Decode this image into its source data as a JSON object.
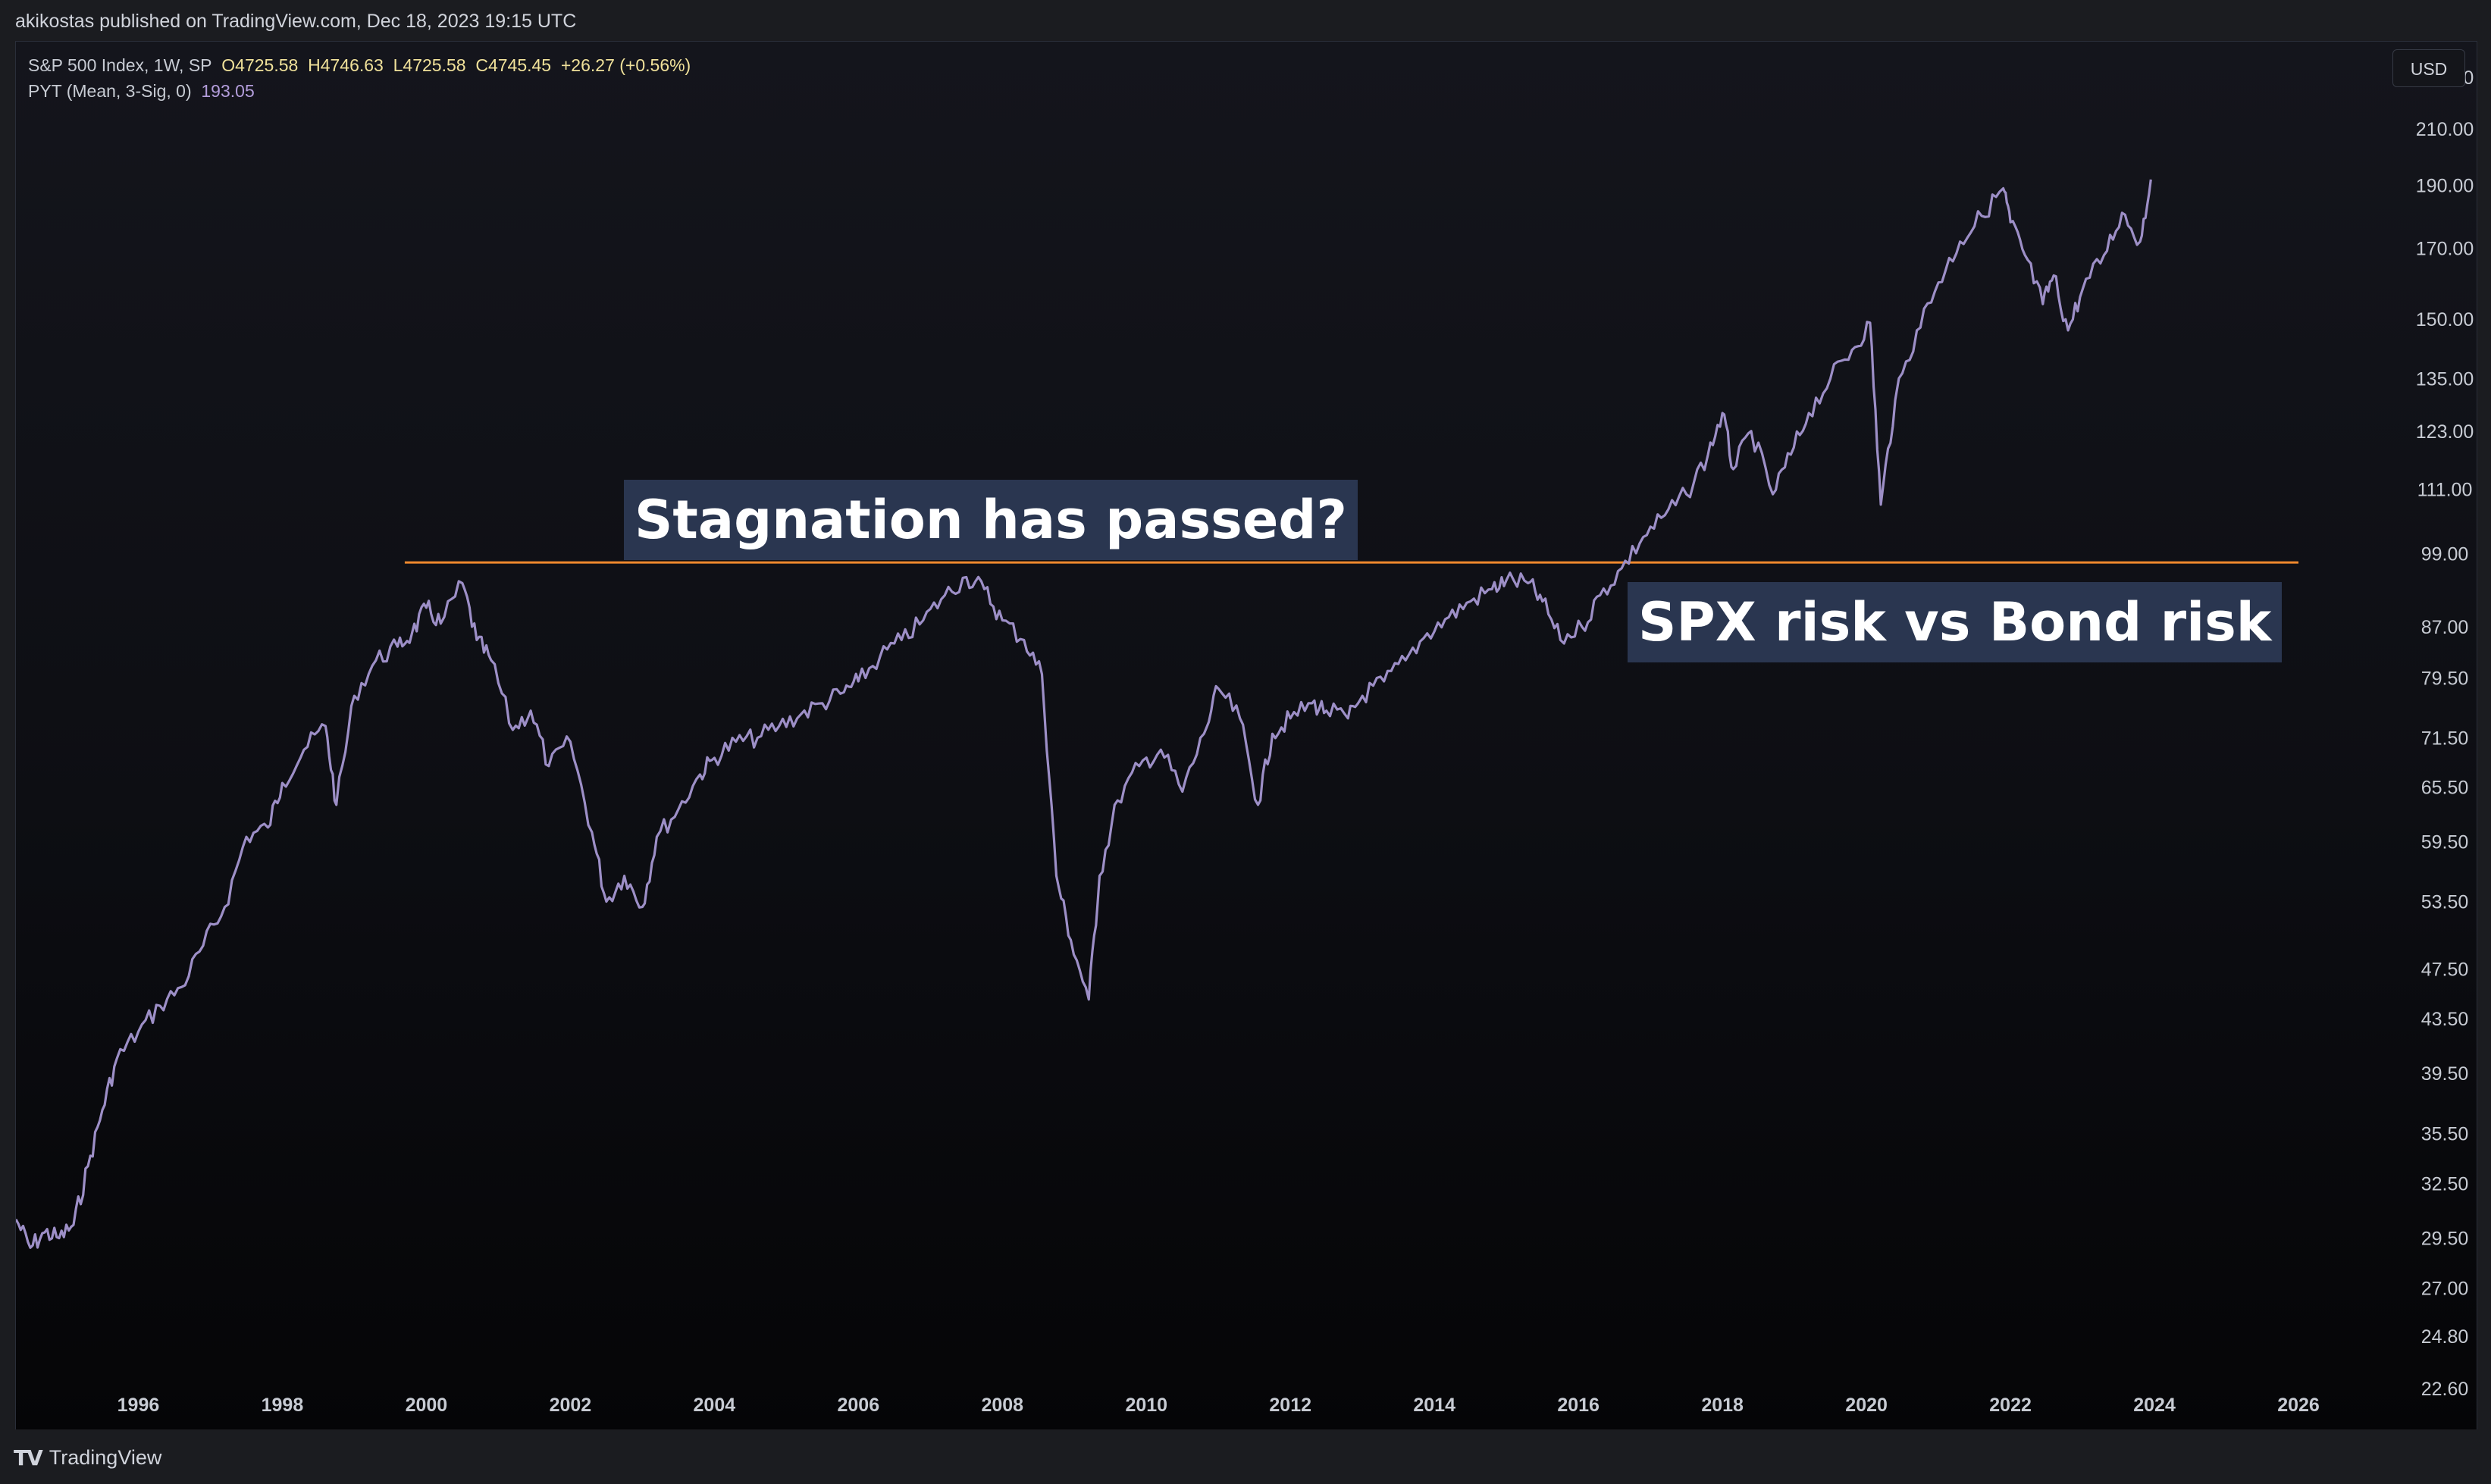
{
  "header": {
    "published": "akikostas published on TradingView.com, Dec 18, 2023 19:15 UTC"
  },
  "legend": {
    "symbol": "S&P 500 Index, 1W, SP",
    "open": "O4725.58",
    "high": "H4746.63",
    "low": "L4725.58",
    "close": "C4745.45",
    "change": "+26.27 (+0.56%)",
    "indicator": "PYT (Mean, 3-Sig, 0)",
    "indicator_value": "193.05"
  },
  "currency": "USD",
  "annotations": {
    "top": "Stagnation has passed?",
    "right": "SPX risk vs Bond risk"
  },
  "footer": {
    "brand": "TradingView",
    "logo_icon": "tradingview-logo-icon"
  },
  "colors": {
    "line": "#9d8fc7",
    "level": "#f0892e",
    "annotation_bg": "#2a3650",
    "background": "#0d0e13"
  },
  "chart_data": {
    "type": "line",
    "title": "",
    "xlabel": "",
    "ylabel": "",
    "yscale": "log",
    "ylim": [
      21,
      245
    ],
    "xlim": [
      1994.3,
      2027.2
    ],
    "x_ticks": [
      "1996",
      "1998",
      "2000",
      "2002",
      "2004",
      "2006",
      "2008",
      "2010",
      "2012",
      "2014",
      "2016",
      "2018",
      "2020",
      "2022",
      "2024",
      "2026"
    ],
    "y_ticks": [
      "230.00",
      "210.00",
      "190.00",
      "170.00",
      "150.00",
      "135.00",
      "123.00",
      "111.00",
      "99.00",
      "87.00",
      "79.50",
      "71.50",
      "65.50",
      "59.50",
      "53.50",
      "47.50",
      "43.50",
      "39.50",
      "35.50",
      "32.50",
      "29.50",
      "27.00",
      "24.80",
      "22.60"
    ],
    "grid": false,
    "legend": "top-left",
    "series": [
      {
        "name": "PYT (Mean, 3-Sig, 0)",
        "x": [
          1994.3,
          1994.5,
          1994.7,
          1994.9,
          1995.1,
          1995.3,
          1995.5,
          1995.7,
          1996.0,
          1996.3,
          1996.6,
          1996.9,
          1997.2,
          1997.5,
          1997.8,
          1998.0,
          1998.3,
          1998.6,
          1998.75,
          1999.0,
          1999.3,
          1999.6,
          1999.8,
          2000.0,
          2000.2,
          2000.5,
          2000.7,
          2000.9,
          2001.2,
          2001.45,
          2001.7,
          2002.0,
          2002.3,
          2002.5,
          2002.75,
          2003.0,
          2003.2,
          2003.5,
          2003.8,
          2004.0,
          2004.3,
          2004.6,
          2004.9,
          2005.2,
          2005.5,
          2005.8,
          2006.0,
          2006.3,
          2006.6,
          2006.9,
          2007.2,
          2007.5,
          2007.75,
          2008.0,
          2008.3,
          2008.55,
          2008.75,
          2008.95,
          2009.2,
          2009.35,
          2009.6,
          2009.9,
          2010.2,
          2010.5,
          2010.8,
          2011.0,
          2011.3,
          2011.55,
          2011.75,
          2012.0,
          2012.3,
          2012.5,
          2012.8,
          2013.0,
          2013.3,
          2013.6,
          2013.9,
          2014.2,
          2014.5,
          2014.8,
          2015.0,
          2015.3,
          2015.5,
          2015.75,
          2016.05,
          2016.3,
          2016.6,
          2016.9,
          2017.2,
          2017.5,
          2017.8,
          2018.0,
          2018.15,
          2018.4,
          2018.7,
          2018.95,
          2019.2,
          2019.5,
          2019.8,
          2020.05,
          2020.2,
          2020.4,
          2020.7,
          2021.0,
          2021.3,
          2021.6,
          2021.9,
          2022.0,
          2022.2,
          2022.45,
          2022.6,
          2022.8,
          2023.0,
          2023.3,
          2023.55,
          2023.8,
          2023.95
        ],
        "values": [
          30.5,
          29.0,
          29.8,
          29.5,
          30.2,
          33.5,
          37.0,
          40.5,
          42.5,
          44.5,
          46.0,
          49.5,
          53.0,
          60.0,
          61.0,
          66.0,
          70.0,
          73.0,
          63.5,
          77.0,
          82.0,
          84.0,
          86.0,
          90.0,
          87.5,
          94.0,
          85.0,
          82.0,
          72.5,
          75.0,
          68.0,
          71.0,
          60.5,
          53.5,
          56.0,
          53.0,
          60.0,
          63.0,
          67.0,
          69.0,
          71.0,
          71.5,
          73.0,
          74.5,
          76.0,
          77.5,
          79.0,
          82.5,
          85.0,
          88.0,
          92.0,
          95.0,
          93.0,
          88.0,
          85.0,
          80.0,
          56.0,
          50.0,
          45.0,
          56.0,
          64.0,
          68.0,
          70.0,
          65.0,
          72.0,
          78.0,
          74.0,
          63.5,
          72.0,
          74.0,
          76.0,
          75.0,
          74.0,
          77.0,
          79.0,
          82.0,
          86.0,
          88.5,
          91.0,
          93.0,
          94.5,
          94.0,
          91.0,
          85.0,
          87.0,
          92.0,
          96.5,
          102.0,
          106.0,
          110.0,
          118.0,
          127.0,
          115.0,
          123.0,
          110.0,
          118.0,
          127.0,
          135.0,
          142.0,
          149.0,
          108.0,
          130.0,
          147.0,
          160.0,
          172.0,
          180.0,
          189.0,
          178.0,
          168.0,
          154.0,
          162.0,
          147.0,
          158.0,
          168.0,
          181.0,
          172.0,
          192.0
        ]
      }
    ],
    "reference_line": {
      "value": 97.5,
      "x_start": 1999.7,
      "x_end": 2026.0
    }
  }
}
